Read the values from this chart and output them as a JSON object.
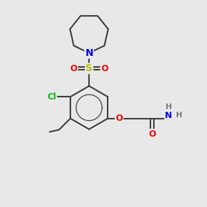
{
  "bg_color": "#e8e8e8",
  "bond_color": "#3a3a3a",
  "bond_width": 1.5,
  "atom_colors": {
    "N": "#0000ee",
    "O": "#ee0000",
    "S": "#bbbb00",
    "Cl": "#00bb00",
    "C": "#3a3a3a",
    "H": "#777777"
  },
  "font_size": 9,
  "figsize": [
    3.0,
    3.0
  ],
  "dpi": 100
}
